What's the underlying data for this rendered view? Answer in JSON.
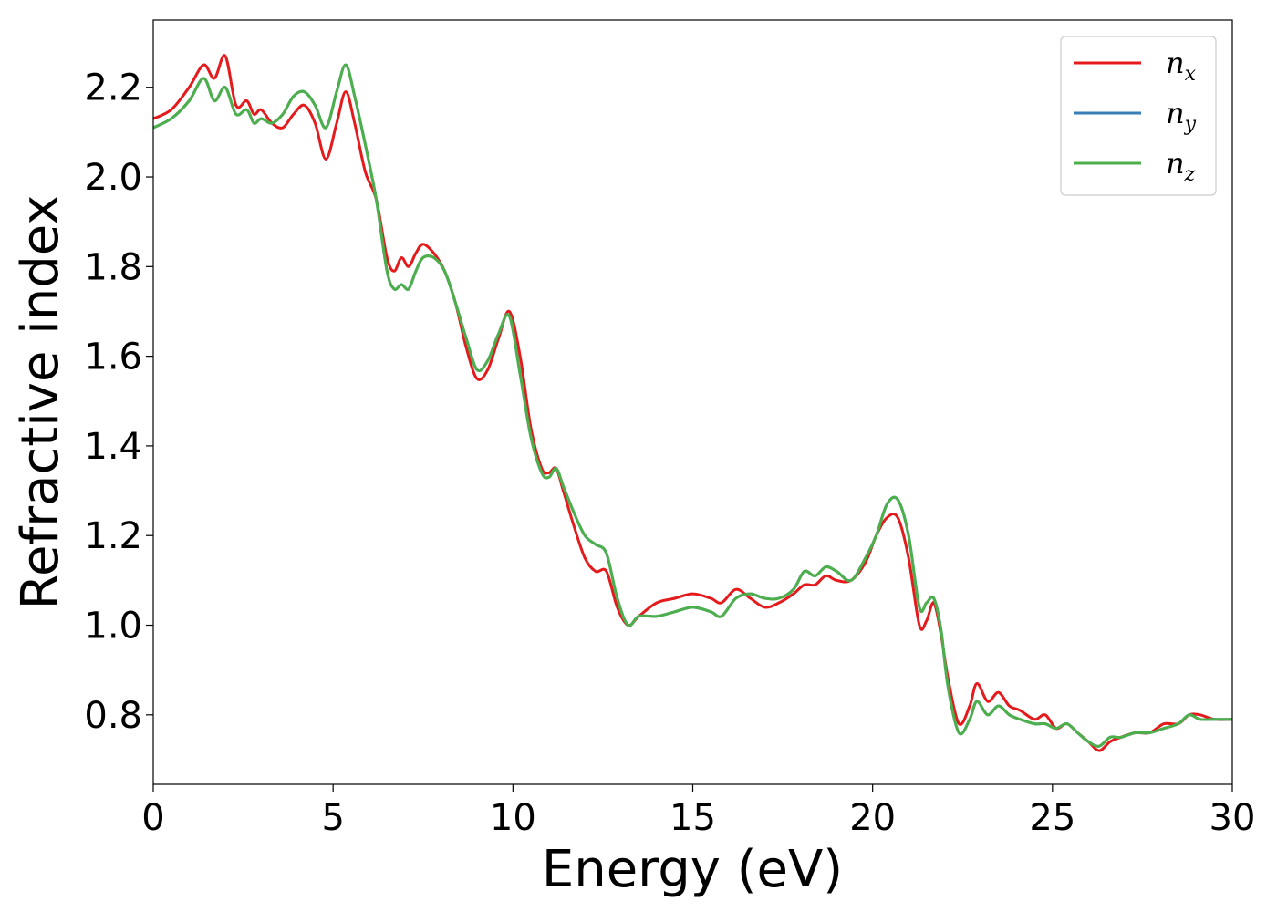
{
  "chart_data": {
    "type": "line",
    "title": "",
    "xlabel": "Energy (eV)",
    "ylabel": "Refractive index",
    "xlim": [
      0,
      30
    ],
    "ylim": [
      0.645,
      2.35
    ],
    "xticks": [
      0,
      5,
      10,
      15,
      20,
      25,
      30
    ],
    "xtick_labels": [
      "0",
      "5",
      "10",
      "15",
      "20",
      "25",
      "30"
    ],
    "yticks": [
      0.8,
      1.0,
      1.2,
      1.4,
      1.6,
      1.8,
      2.0,
      2.2
    ],
    "ytick_labels": [
      "0.8",
      "1.0",
      "1.2",
      "1.4",
      "1.6",
      "1.8",
      "2.0",
      "2.2"
    ],
    "grid": false,
    "legend_position": "top-right",
    "series": [
      {
        "name": "n_x",
        "base": "n",
        "sub": "x",
        "color": "#e41a1c",
        "x": [
          0,
          0.5,
          1.0,
          1.4,
          1.7,
          2.0,
          2.3,
          2.6,
          2.8,
          3.0,
          3.3,
          3.6,
          3.9,
          4.2,
          4.5,
          4.8,
          5.1,
          5.35,
          5.6,
          5.9,
          6.2,
          6.5,
          6.7,
          6.9,
          7.1,
          7.3,
          7.5,
          7.8,
          8.1,
          8.4,
          8.7,
          9.0,
          9.3,
          9.6,
          9.9,
          10.2,
          10.5,
          10.8,
          11.0,
          11.2,
          11.4,
          11.7,
          12.0,
          12.3,
          12.6,
          12.9,
          13.2,
          13.5,
          14.0,
          14.5,
          15.0,
          15.5,
          15.8,
          16.2,
          16.6,
          17.0,
          17.4,
          17.8,
          18.1,
          18.4,
          18.7,
          19.0,
          19.4,
          19.8,
          20.1,
          20.4,
          20.7,
          21.0,
          21.3,
          21.5,
          21.7,
          21.9,
          22.1,
          22.4,
          22.7,
          22.9,
          23.2,
          23.5,
          23.8,
          24.1,
          24.5,
          24.8,
          25.1,
          25.4,
          25.7,
          26.0,
          26.3,
          26.6,
          26.9,
          27.3,
          27.7,
          28.1,
          28.5,
          28.8,
          29.1,
          29.5,
          30.0
        ],
        "y": [
          2.13,
          2.15,
          2.2,
          2.25,
          2.22,
          2.27,
          2.16,
          2.17,
          2.14,
          2.15,
          2.12,
          2.11,
          2.14,
          2.16,
          2.12,
          2.04,
          2.12,
          2.19,
          2.12,
          2.01,
          1.95,
          1.82,
          1.79,
          1.82,
          1.8,
          1.83,
          1.85,
          1.83,
          1.79,
          1.72,
          1.62,
          1.55,
          1.57,
          1.64,
          1.7,
          1.6,
          1.44,
          1.35,
          1.34,
          1.35,
          1.3,
          1.22,
          1.15,
          1.12,
          1.12,
          1.04,
          1.0,
          1.02,
          1.05,
          1.06,
          1.07,
          1.06,
          1.05,
          1.08,
          1.06,
          1.04,
          1.05,
          1.07,
          1.09,
          1.09,
          1.11,
          1.1,
          1.1,
          1.14,
          1.2,
          1.24,
          1.24,
          1.15,
          1.0,
          1.01,
          1.05,
          0.98,
          0.88,
          0.78,
          0.82,
          0.87,
          0.83,
          0.85,
          0.82,
          0.81,
          0.79,
          0.8,
          0.77,
          0.78,
          0.76,
          0.74,
          0.72,
          0.74,
          0.75,
          0.76,
          0.76,
          0.78,
          0.78,
          0.8,
          0.8,
          0.79,
          0.79
        ]
      },
      {
        "name": "n_y",
        "base": "n",
        "sub": "y",
        "color": "#377eb8",
        "x": [
          0,
          0.5,
          1.0,
          1.4,
          1.7,
          2.0,
          2.3,
          2.6,
          2.8,
          3.0,
          3.3,
          3.6,
          3.9,
          4.2,
          4.5,
          4.8,
          5.1,
          5.35,
          5.6,
          5.9,
          6.2,
          6.5,
          6.7,
          6.9,
          7.1,
          7.3,
          7.5,
          7.8,
          8.1,
          8.4,
          8.7,
          9.0,
          9.3,
          9.6,
          9.9,
          10.2,
          10.5,
          10.8,
          11.0,
          11.2,
          11.4,
          11.7,
          12.0,
          12.3,
          12.6,
          12.9,
          13.2,
          13.5,
          14.0,
          14.5,
          15.0,
          15.5,
          15.8,
          16.2,
          16.6,
          17.0,
          17.4,
          17.8,
          18.1,
          18.4,
          18.7,
          19.0,
          19.4,
          19.8,
          20.1,
          20.4,
          20.7,
          21.0,
          21.3,
          21.5,
          21.7,
          21.9,
          22.1,
          22.4,
          22.7,
          22.9,
          23.2,
          23.5,
          23.8,
          24.1,
          24.5,
          24.8,
          25.1,
          25.4,
          25.7,
          26.0,
          26.3,
          26.6,
          26.9,
          27.3,
          27.7,
          28.1,
          28.5,
          28.8,
          29.1,
          29.5,
          30.0
        ],
        "y": [
          2.11,
          2.13,
          2.17,
          2.22,
          2.17,
          2.2,
          2.14,
          2.15,
          2.12,
          2.13,
          2.12,
          2.14,
          2.18,
          2.19,
          2.16,
          2.11,
          2.19,
          2.25,
          2.18,
          2.07,
          1.95,
          1.79,
          1.75,
          1.76,
          1.75,
          1.79,
          1.82,
          1.82,
          1.79,
          1.72,
          1.64,
          1.57,
          1.59,
          1.65,
          1.69,
          1.56,
          1.42,
          1.34,
          1.33,
          1.35,
          1.31,
          1.25,
          1.2,
          1.18,
          1.16,
          1.06,
          1.0,
          1.02,
          1.02,
          1.03,
          1.04,
          1.03,
          1.02,
          1.06,
          1.07,
          1.06,
          1.06,
          1.08,
          1.12,
          1.11,
          1.13,
          1.12,
          1.1,
          1.15,
          1.2,
          1.27,
          1.28,
          1.2,
          1.04,
          1.05,
          1.06,
          0.99,
          0.86,
          0.76,
          0.79,
          0.83,
          0.8,
          0.82,
          0.8,
          0.79,
          0.78,
          0.78,
          0.77,
          0.78,
          0.76,
          0.74,
          0.73,
          0.75,
          0.75,
          0.76,
          0.76,
          0.77,
          0.78,
          0.8,
          0.79,
          0.79,
          0.79
        ]
      },
      {
        "name": "n_z",
        "base": "n",
        "sub": "z",
        "color": "#4daf4a",
        "x": [
          0,
          0.5,
          1.0,
          1.4,
          1.7,
          2.0,
          2.3,
          2.6,
          2.8,
          3.0,
          3.3,
          3.6,
          3.9,
          4.2,
          4.5,
          4.8,
          5.1,
          5.35,
          5.6,
          5.9,
          6.2,
          6.5,
          6.7,
          6.9,
          7.1,
          7.3,
          7.5,
          7.8,
          8.1,
          8.4,
          8.7,
          9.0,
          9.3,
          9.6,
          9.9,
          10.2,
          10.5,
          10.8,
          11.0,
          11.2,
          11.4,
          11.7,
          12.0,
          12.3,
          12.6,
          12.9,
          13.2,
          13.5,
          14.0,
          14.5,
          15.0,
          15.5,
          15.8,
          16.2,
          16.6,
          17.0,
          17.4,
          17.8,
          18.1,
          18.4,
          18.7,
          19.0,
          19.4,
          19.8,
          20.1,
          20.4,
          20.7,
          21.0,
          21.3,
          21.5,
          21.7,
          21.9,
          22.1,
          22.4,
          22.7,
          22.9,
          23.2,
          23.5,
          23.8,
          24.1,
          24.5,
          24.8,
          25.1,
          25.4,
          25.7,
          26.0,
          26.3,
          26.6,
          26.9,
          27.3,
          27.7,
          28.1,
          28.5,
          28.8,
          29.1,
          29.5,
          30.0
        ],
        "y": [
          2.11,
          2.13,
          2.17,
          2.22,
          2.17,
          2.2,
          2.14,
          2.15,
          2.12,
          2.13,
          2.12,
          2.14,
          2.18,
          2.19,
          2.16,
          2.11,
          2.19,
          2.25,
          2.18,
          2.07,
          1.95,
          1.79,
          1.75,
          1.76,
          1.75,
          1.79,
          1.82,
          1.82,
          1.79,
          1.72,
          1.64,
          1.57,
          1.59,
          1.65,
          1.69,
          1.56,
          1.42,
          1.34,
          1.33,
          1.35,
          1.31,
          1.25,
          1.2,
          1.18,
          1.16,
          1.06,
          1.0,
          1.02,
          1.02,
          1.03,
          1.04,
          1.03,
          1.02,
          1.06,
          1.07,
          1.06,
          1.06,
          1.08,
          1.12,
          1.11,
          1.13,
          1.12,
          1.1,
          1.15,
          1.2,
          1.27,
          1.28,
          1.2,
          1.04,
          1.05,
          1.06,
          0.99,
          0.86,
          0.76,
          0.79,
          0.83,
          0.8,
          0.82,
          0.8,
          0.79,
          0.78,
          0.78,
          0.77,
          0.78,
          0.76,
          0.74,
          0.73,
          0.75,
          0.75,
          0.76,
          0.76,
          0.77,
          0.78,
          0.8,
          0.79,
          0.79,
          0.79
        ]
      }
    ]
  }
}
